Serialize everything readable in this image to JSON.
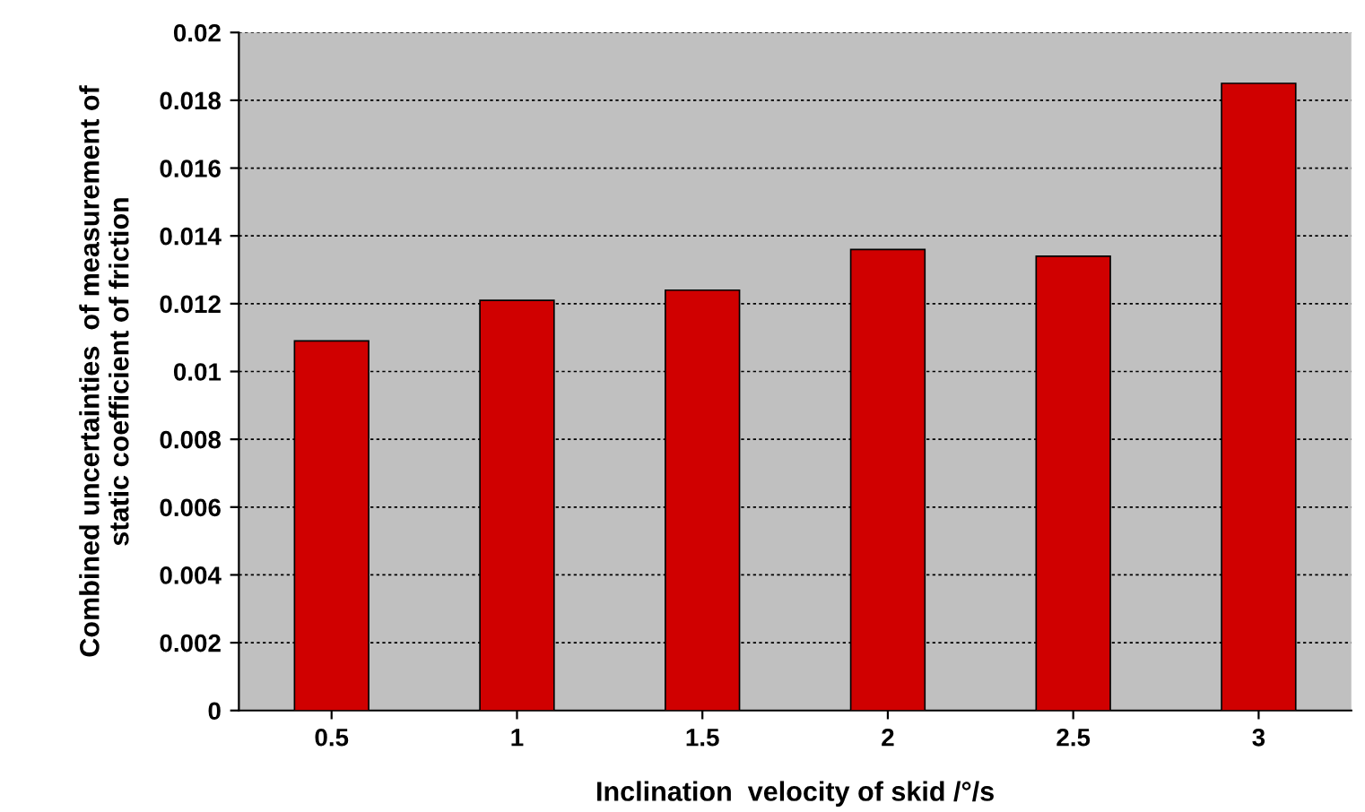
{
  "chart_data": {
    "type": "bar",
    "xlabel": "Inclination  velocity of skid /°/s",
    "ylabel": "Combined uncertainties  of measurement of\nstatic coefficient of friction",
    "categories": [
      "0.5",
      "1",
      "1.5",
      "2",
      "2.5",
      "3"
    ],
    "values": [
      0.0109,
      0.0121,
      0.0124,
      0.0136,
      0.0134,
      0.0185
    ],
    "color": "#d00000",
    "ylim": [
      0,
      0.02
    ],
    "yticks": [
      {
        "value": 0,
        "label": "0"
      },
      {
        "value": 0.002,
        "label": "0.002"
      },
      {
        "value": 0.004,
        "label": "0.004"
      },
      {
        "value": 0.006,
        "label": "0.006"
      },
      {
        "value": 0.008,
        "label": "0.008"
      },
      {
        "value": 0.01,
        "label": "0.01"
      },
      {
        "value": 0.012,
        "label": "0.012"
      },
      {
        "value": 0.014,
        "label": "0.014"
      },
      {
        "value": 0.016,
        "label": "0.016"
      },
      {
        "value": 0.018,
        "label": "0.018"
      },
      {
        "value": 0.02,
        "label": "0.02"
      }
    ],
    "grid": "y"
  }
}
